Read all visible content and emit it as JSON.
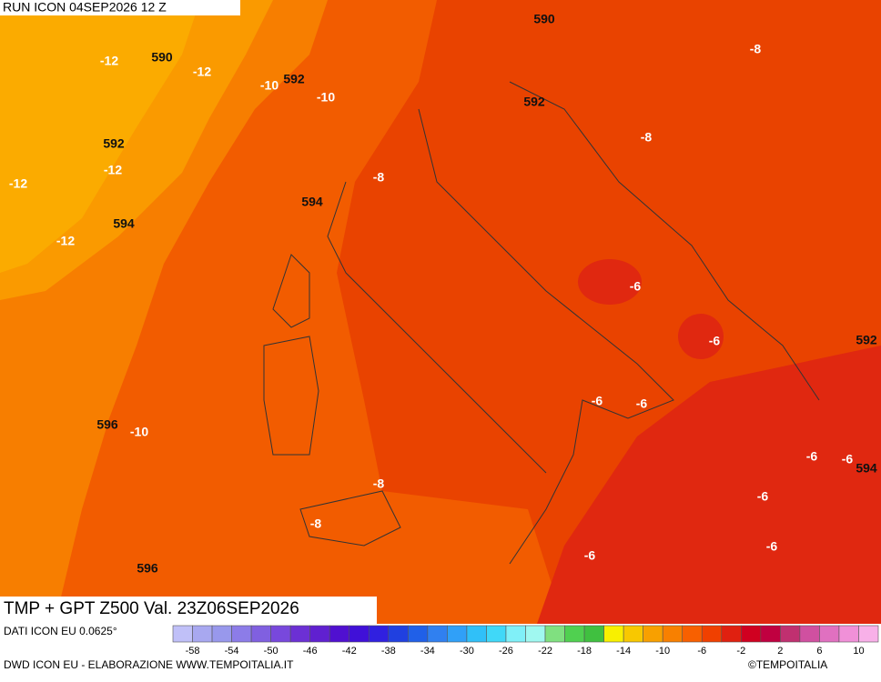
{
  "header": {
    "run": "RUN ICON 04SEP2026 12 Z",
    "product": "TMP + GPT Z500 Val. 23Z06SEP2026"
  },
  "map": {
    "labels": [
      "-12",
      "590",
      "-12",
      "-10",
      "592",
      "-10",
      "592",
      "-12",
      "-12",
      "594",
      "-12",
      "-8",
      "594",
      "590",
      "-8",
      "592",
      "-8",
      "-6",
      "-6",
      "592",
      "-6",
      "-6",
      "-6",
      "-6",
      "594",
      "-6",
      "596",
      "-10",
      "-8",
      "-8",
      "596",
      "-6",
      "-6"
    ]
  },
  "legend": {
    "source": "DATI ICON EU 0.0625°",
    "colors": [
      "#c0c0f8",
      "#a8a8f0",
      "#9898ec",
      "#8c7ce8",
      "#8060e0",
      "#7848dc",
      "#6c30d4",
      "#6020d0",
      "#5010d0",
      "#4010d8",
      "#3020e0",
      "#2040e0",
      "#2060e8",
      "#3080f0",
      "#30a0f8",
      "#30c0f8",
      "#40d8f8",
      "#80f0f8",
      "#a0f8f0",
      "#80e080",
      "#50d050",
      "#40c040",
      "#f8f000",
      "#f8c800",
      "#f8a000",
      "#f88000",
      "#f86000",
      "#f04000",
      "#e02010",
      "#d00020",
      "#c00040",
      "#c03070",
      "#d050a0",
      "#e070c0",
      "#f090d8",
      "#f8b0e8"
    ],
    "ticks": [
      "-58",
      "-54",
      "-50",
      "-46",
      "-42",
      "-38",
      "-34",
      "-30",
      "-26",
      "-22",
      "-18",
      "-14",
      "-10",
      "-6",
      "-2",
      "2",
      "6",
      "10"
    ]
  },
  "footer": {
    "credit": "DWD ICON EU - ELABORAZIONE WWW.TEMPOITALIA.IT",
    "brand": "©TEMPOITALIA"
  }
}
